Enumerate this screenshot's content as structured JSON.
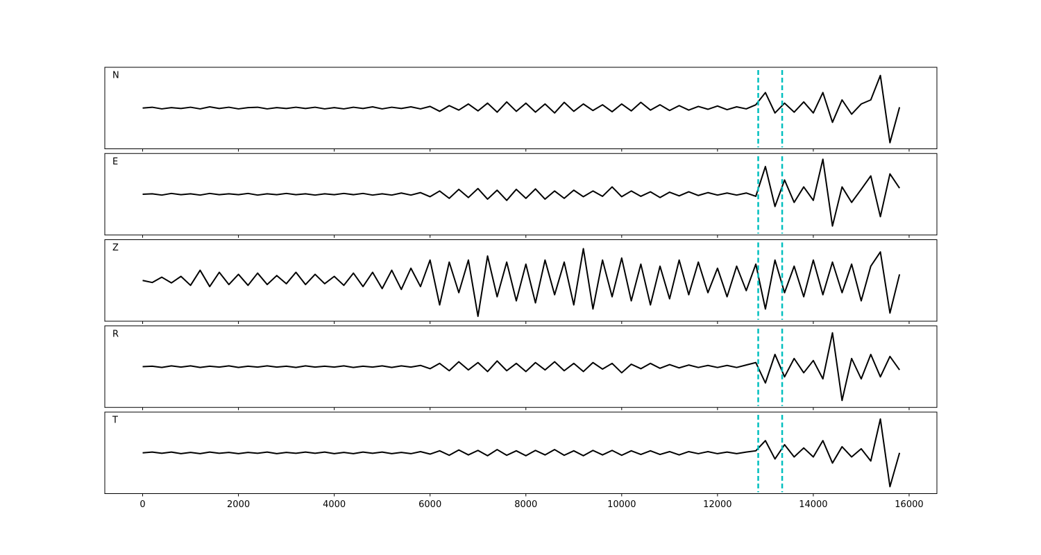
{
  "chart_data": [
    {
      "type": "line",
      "label": "N",
      "color": "#000000",
      "vline_color": "#00bfbf",
      "vlines": [
        12850,
        13350
      ],
      "xlim": [
        -790,
        16580
      ],
      "ylim": [
        -1,
        1
      ],
      "xticks": [
        0,
        2000,
        4000,
        6000,
        8000,
        10000,
        12000,
        14000,
        16000
      ],
      "x": [
        0,
        200,
        400,
        600,
        800,
        1000,
        1200,
        1400,
        1600,
        1800,
        2000,
        2200,
        2400,
        2600,
        2800,
        3000,
        3200,
        3400,
        3600,
        3800,
        4000,
        4200,
        4400,
        4600,
        4800,
        5000,
        5200,
        5400,
        5600,
        5800,
        6000,
        6200,
        6400,
        6600,
        6800,
        7000,
        7200,
        7400,
        7600,
        7800,
        8000,
        8200,
        8400,
        8600,
        8800,
        9000,
        9200,
        9400,
        9600,
        9800,
        10000,
        10200,
        10400,
        10600,
        10800,
        11000,
        11200,
        11400,
        11600,
        11800,
        12000,
        12200,
        12400,
        12600,
        12800,
        13000,
        13200,
        13400,
        13600,
        13800,
        14000,
        14200,
        14400,
        14600,
        14800,
        15000,
        15200,
        15400,
        15600,
        15800
      ],
      "values": [
        0,
        0.02,
        -0.02,
        0.01,
        -0.01,
        0.02,
        -0.02,
        0.03,
        -0.01,
        0.02,
        -0.02,
        0.01,
        0.02,
        -0.02,
        0.01,
        -0.01,
        0.02,
        -0.01,
        0.02,
        -0.02,
        0.01,
        -0.02,
        0.02,
        -0.01,
        0.03,
        -0.02,
        0.02,
        -0.01,
        0.03,
        -0.02,
        0.04,
        -0.08,
        0.06,
        -0.05,
        0.1,
        -0.07,
        0.12,
        -0.1,
        0.15,
        -0.08,
        0.12,
        -0.1,
        0.1,
        -0.12,
        0.14,
        -0.08,
        0.1,
        -0.06,
        0.08,
        -0.09,
        0.1,
        -0.07,
        0.14,
        -0.05,
        0.08,
        -0.06,
        0.06,
        -0.05,
        0.04,
        -0.03,
        0.05,
        -0.04,
        0.03,
        -0.02,
        0.08,
        0.38,
        -0.12,
        0.12,
        -0.1,
        0.15,
        -0.12,
        0.38,
        -0.35,
        0.2,
        -0.15,
        0.1,
        0.2,
        0.8,
        -0.85,
        0.02
      ]
    },
    {
      "type": "line",
      "label": "E",
      "color": "#000000",
      "vline_color": "#00bfbf",
      "vlines": [
        12850,
        13350
      ],
      "xlim": [
        -790,
        16580
      ],
      "ylim": [
        -1,
        1
      ],
      "xticks": [
        0,
        2000,
        4000,
        6000,
        8000,
        10000,
        12000,
        14000,
        16000
      ],
      "x": [
        0,
        200,
        400,
        600,
        800,
        1000,
        1200,
        1400,
        1600,
        1800,
        2000,
        2200,
        2400,
        2600,
        2800,
        3000,
        3200,
        3400,
        3600,
        3800,
        4000,
        4200,
        4400,
        4600,
        4800,
        5000,
        5200,
        5400,
        5600,
        5800,
        6000,
        6200,
        6400,
        6600,
        6800,
        7000,
        7200,
        7400,
        7600,
        7800,
        8000,
        8200,
        8400,
        8600,
        8800,
        9000,
        9200,
        9400,
        9600,
        9800,
        10000,
        10200,
        10400,
        10600,
        10800,
        11000,
        11200,
        11400,
        11600,
        11800,
        12000,
        12200,
        12400,
        12600,
        12800,
        13000,
        13200,
        13400,
        13600,
        13800,
        14000,
        14200,
        14400,
        14600,
        14800,
        15000,
        15200,
        15400,
        15600,
        15800
      ],
      "values": [
        0,
        0.01,
        -0.02,
        0.02,
        -0.01,
        0.01,
        -0.02,
        0.02,
        -0.01,
        0.01,
        -0.01,
        0.02,
        -0.02,
        0.01,
        -0.01,
        0.02,
        -0.01,
        0.01,
        -0.02,
        0.01,
        -0.01,
        0.02,
        -0.01,
        0.02,
        -0.02,
        0.01,
        -0.02,
        0.03,
        -0.02,
        0.04,
        -0.06,
        0.08,
        -0.1,
        0.12,
        -0.08,
        0.14,
        -0.12,
        0.1,
        -0.15,
        0.12,
        -0.1,
        0.13,
        -0.12,
        0.08,
        -0.1,
        0.1,
        -0.06,
        0.08,
        -0.05,
        0.18,
        -0.06,
        0.08,
        -0.05,
        0.06,
        -0.08,
        0.05,
        -0.04,
        0.06,
        -0.03,
        0.04,
        -0.02,
        0.03,
        -0.02,
        0.03,
        -0.05,
        0.68,
        -0.3,
        0.35,
        -0.2,
        0.18,
        -0.15,
        0.86,
        -0.78,
        0.18,
        -0.2,
        0.12,
        0.45,
        -0.55,
        0.5,
        0.15
      ]
    },
    {
      "type": "line",
      "label": "Z",
      "color": "#000000",
      "vline_color": "#00bfbf",
      "vlines": [
        12850,
        13350
      ],
      "xlim": [
        -790,
        16580
      ],
      "ylim": [
        -1,
        1
      ],
      "xticks": [
        0,
        2000,
        4000,
        6000,
        8000,
        10000,
        12000,
        14000,
        16000
      ],
      "x": [
        0,
        200,
        400,
        600,
        800,
        1000,
        1200,
        1400,
        1600,
        1800,
        2000,
        2200,
        2400,
        2600,
        2800,
        3000,
        3200,
        3400,
        3600,
        3800,
        4000,
        4200,
        4400,
        4600,
        4800,
        5000,
        5200,
        5400,
        5600,
        5800,
        6000,
        6200,
        6400,
        6600,
        6800,
        7000,
        7200,
        7400,
        7600,
        7800,
        8000,
        8200,
        8400,
        8600,
        8800,
        9000,
        9200,
        9400,
        9600,
        9800,
        10000,
        10200,
        10400,
        10600,
        10800,
        11000,
        11200,
        11400,
        11600,
        11800,
        12000,
        12200,
        12400,
        12600,
        12800,
        13000,
        13200,
        13400,
        13600,
        13800,
        14000,
        14200,
        14400,
        14600,
        14800,
        15000,
        15200,
        15400,
        15600,
        15800
      ],
      "values": [
        0,
        -0.05,
        0.08,
        -0.06,
        0.1,
        -0.12,
        0.25,
        -0.15,
        0.2,
        -0.1,
        0.15,
        -0.12,
        0.18,
        -0.1,
        0.12,
        -0.08,
        0.2,
        -0.1,
        0.15,
        -0.08,
        0.1,
        -0.12,
        0.18,
        -0.15,
        0.2,
        -0.2,
        0.25,
        -0.22,
        0.3,
        -0.15,
        0.5,
        -0.6,
        0.45,
        -0.3,
        0.5,
        -0.88,
        0.6,
        -0.4,
        0.45,
        -0.5,
        0.4,
        -0.55,
        0.5,
        -0.35,
        0.45,
        -0.6,
        0.78,
        -0.7,
        0.5,
        -0.4,
        0.55,
        -0.5,
        0.4,
        -0.6,
        0.35,
        -0.45,
        0.5,
        -0.35,
        0.45,
        -0.3,
        0.3,
        -0.4,
        0.35,
        -0.25,
        0.4,
        -0.7,
        0.5,
        -0.3,
        0.35,
        -0.4,
        0.5,
        -0.35,
        0.45,
        -0.3,
        0.4,
        -0.5,
        0.35,
        0.7,
        -0.8,
        0.15
      ]
    },
    {
      "type": "line",
      "label": "R",
      "color": "#000000",
      "vline_color": "#00bfbf",
      "vlines": [
        12850,
        13350
      ],
      "xlim": [
        -790,
        16580
      ],
      "ylim": [
        -1,
        1
      ],
      "xticks": [
        0,
        2000,
        4000,
        6000,
        8000,
        10000,
        12000,
        14000,
        16000
      ],
      "x": [
        0,
        200,
        400,
        600,
        800,
        1000,
        1200,
        1400,
        1600,
        1800,
        2000,
        2200,
        2400,
        2600,
        2800,
        3000,
        3200,
        3400,
        3600,
        3800,
        4000,
        4200,
        4400,
        4600,
        4800,
        5000,
        5200,
        5400,
        5600,
        5800,
        6000,
        6200,
        6400,
        6600,
        6800,
        7000,
        7200,
        7400,
        7600,
        7800,
        8000,
        8200,
        8400,
        8600,
        8800,
        9000,
        9200,
        9400,
        9600,
        9800,
        10000,
        10200,
        10400,
        10600,
        10800,
        11000,
        11200,
        11400,
        11600,
        11800,
        12000,
        12200,
        12400,
        12600,
        12800,
        13000,
        13200,
        13400,
        13600,
        13800,
        14000,
        14200,
        14400,
        14600,
        14800,
        15000,
        15200,
        15400,
        15600,
        15800
      ],
      "values": [
        0,
        0.01,
        -0.02,
        0.02,
        -0.01,
        0.02,
        -0.02,
        0.01,
        -0.01,
        0.02,
        -0.02,
        0.01,
        -0.01,
        0.02,
        -0.01,
        0.01,
        -0.02,
        0.02,
        -0.01,
        0.01,
        -0.01,
        0.02,
        -0.02,
        0.01,
        -0.01,
        0.02,
        -0.02,
        0.02,
        -0.01,
        0.03,
        -0.05,
        0.08,
        -0.1,
        0.12,
        -0.08,
        0.1,
        -0.12,
        0.14,
        -0.1,
        0.08,
        -0.12,
        0.1,
        -0.08,
        0.12,
        -0.1,
        0.08,
        -0.12,
        0.1,
        -0.06,
        0.08,
        -0.15,
        0.06,
        -0.05,
        0.08,
        -0.04,
        0.05,
        -0.03,
        0.04,
        -0.02,
        0.03,
        -0.02,
        0.03,
        -0.02,
        0.04,
        0.1,
        -0.4,
        0.3,
        -0.25,
        0.2,
        -0.15,
        0.15,
        -0.3,
        0.83,
        -0.83,
        0.2,
        -0.3,
        0.3,
        -0.25,
        0.25,
        -0.08
      ]
    },
    {
      "type": "line",
      "label": "T",
      "color": "#000000",
      "vline_color": "#00bfbf",
      "vlines": [
        12850,
        13350
      ],
      "xlim": [
        -790,
        16580
      ],
      "ylim": [
        -1,
        1
      ],
      "xticks": [
        0,
        2000,
        4000,
        6000,
        8000,
        10000,
        12000,
        14000,
        16000
      ],
      "x": [
        0,
        200,
        400,
        600,
        800,
        1000,
        1200,
        1400,
        1600,
        1800,
        2000,
        2200,
        2400,
        2600,
        2800,
        3000,
        3200,
        3400,
        3600,
        3800,
        4000,
        4200,
        4400,
        4600,
        4800,
        5000,
        5200,
        5400,
        5600,
        5800,
        6000,
        6200,
        6400,
        6600,
        6800,
        7000,
        7200,
        7400,
        7600,
        7800,
        8000,
        8200,
        8400,
        8600,
        8800,
        9000,
        9200,
        9400,
        9600,
        9800,
        10000,
        10200,
        10400,
        10600,
        10800,
        11000,
        11200,
        11400,
        11600,
        11800,
        12000,
        12200,
        12400,
        12600,
        12800,
        13000,
        13200,
        13400,
        13600,
        13800,
        14000,
        14200,
        14400,
        14600,
        14800,
        15000,
        15200,
        15400,
        15600,
        15800
      ],
      "values": [
        0,
        0.02,
        -0.01,
        0.02,
        -0.02,
        0.01,
        -0.02,
        0.02,
        -0.01,
        0.01,
        -0.02,
        0.01,
        -0.01,
        0.02,
        -0.02,
        0.01,
        -0.01,
        0.02,
        -0.01,
        0.02,
        -0.02,
        0.01,
        -0.02,
        0.02,
        -0.01,
        0.02,
        -0.02,
        0.01,
        -0.02,
        0.03,
        -0.03,
        0.05,
        -0.06,
        0.07,
        -0.05,
        0.06,
        -0.07,
        0.08,
        -0.06,
        0.05,
        -0.07,
        0.06,
        -0.05,
        0.08,
        -0.06,
        0.05,
        -0.07,
        0.06,
        -0.05,
        0.06,
        -0.06,
        0.05,
        -0.04,
        0.05,
        -0.04,
        0.03,
        -0.05,
        0.03,
        -0.02,
        0.03,
        -0.02,
        0.02,
        -0.02,
        0.02,
        0.05,
        0.3,
        -0.15,
        0.2,
        -0.1,
        0.12,
        -0.1,
        0.3,
        -0.25,
        0.15,
        -0.1,
        0.1,
        -0.2,
        0.83,
        -0.83,
        0
      ]
    }
  ]
}
